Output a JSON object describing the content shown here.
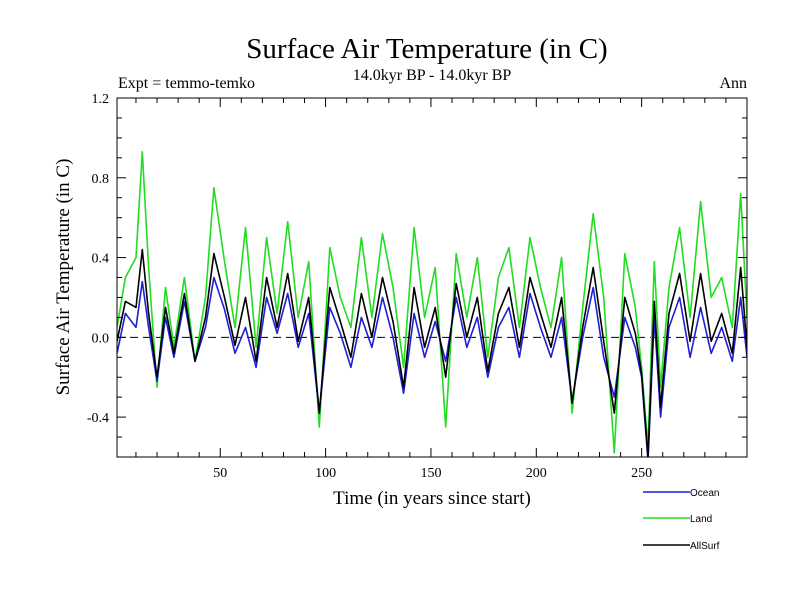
{
  "chart_data": {
    "type": "line",
    "title": "Surface Air Temperature (in C)",
    "subtitle": "14.0kyr BP - 14.0kyr BP",
    "left_label": "Expt = temmo-temko",
    "right_label": "Ann",
    "xlabel": "Time (in years since start)",
    "ylabel": "Surface Air Temperature (in C)",
    "xlim": [
      1,
      300
    ],
    "ylim": [
      -0.6,
      1.2
    ],
    "xticks": [
      50,
      100,
      150,
      200,
      250
    ],
    "yticks": [
      -0.4,
      0.0,
      0.4,
      0.8,
      1.2
    ],
    "ytick_labels": [
      "-0.4",
      "0.0",
      "0.4",
      "0.8",
      "1.2"
    ],
    "zero_line": "dashed",
    "series": [
      {
        "name": "Ocean",
        "color": "#1f1fd6",
        "x": [
          1,
          5,
          10,
          13,
          16,
          20,
          24,
          28,
          33,
          38,
          43,
          47,
          52,
          57,
          62,
          67,
          72,
          77,
          82,
          87,
          92,
          97,
          102,
          107,
          112,
          117,
          122,
          127,
          132,
          137,
          142,
          147,
          152,
          157,
          162,
          167,
          172,
          177,
          182,
          187,
          192,
          197,
          202,
          207,
          212,
          217,
          222,
          227,
          232,
          237,
          242,
          247,
          250,
          253,
          256,
          259,
          263,
          268,
          273,
          278,
          283,
          288,
          293,
          297,
          300
        ],
        "y": [
          -0.08,
          0.12,
          0.05,
          0.28,
          0.05,
          -0.22,
          0.1,
          -0.1,
          0.18,
          -0.12,
          0.05,
          0.3,
          0.14,
          -0.08,
          0.05,
          -0.15,
          0.2,
          0.02,
          0.22,
          -0.05,
          0.12,
          -0.38,
          0.15,
          0.02,
          -0.15,
          0.1,
          -0.05,
          0.2,
          0.0,
          -0.28,
          0.12,
          -0.1,
          0.08,
          -0.12,
          0.2,
          -0.05,
          0.1,
          -0.2,
          0.05,
          0.15,
          -0.1,
          0.22,
          0.05,
          -0.1,
          0.1,
          -0.32,
          0.0,
          0.25,
          -0.1,
          -0.3,
          0.1,
          -0.05,
          -0.2,
          -0.62,
          0.1,
          -0.4,
          0.05,
          0.2,
          -0.1,
          0.15,
          -0.08,
          0.05,
          -0.12,
          0.2,
          -0.1
        ]
      },
      {
        "name": "Land",
        "color": "#22dd22",
        "x": [
          1,
          5,
          10,
          13,
          16,
          20,
          24,
          28,
          33,
          38,
          43,
          47,
          52,
          57,
          62,
          67,
          72,
          77,
          82,
          87,
          92,
          97,
          102,
          107,
          112,
          117,
          122,
          127,
          132,
          137,
          142,
          147,
          152,
          157,
          162,
          167,
          172,
          177,
          182,
          187,
          192,
          197,
          202,
          207,
          212,
          217,
          222,
          227,
          232,
          237,
          242,
          247,
          250,
          253,
          256,
          259,
          263,
          268,
          273,
          278,
          283,
          288,
          293,
          297,
          300
        ],
        "y": [
          0.05,
          0.3,
          0.4,
          0.93,
          0.35,
          -0.25,
          0.25,
          -0.05,
          0.3,
          -0.12,
          0.2,
          0.75,
          0.38,
          0.05,
          0.55,
          -0.05,
          0.5,
          0.12,
          0.58,
          0.1,
          0.38,
          -0.45,
          0.45,
          0.2,
          0.05,
          0.5,
          0.1,
          0.52,
          0.25,
          -0.15,
          0.55,
          0.1,
          0.35,
          -0.45,
          0.42,
          0.1,
          0.4,
          -0.1,
          0.3,
          0.45,
          0.05,
          0.5,
          0.25,
          0.05,
          0.4,
          -0.38,
          0.15,
          0.62,
          0.2,
          -0.58,
          0.42,
          0.15,
          -0.15,
          -0.55,
          0.38,
          -0.25,
          0.25,
          0.55,
          0.1,
          0.68,
          0.2,
          0.3,
          0.05,
          0.72,
          0.1
        ]
      },
      {
        "name": "AllSurf",
        "color": "#000000",
        "x": [
          1,
          5,
          10,
          13,
          16,
          20,
          24,
          28,
          33,
          38,
          43,
          47,
          52,
          57,
          62,
          67,
          72,
          77,
          82,
          87,
          92,
          97,
          102,
          107,
          112,
          117,
          122,
          127,
          132,
          137,
          142,
          147,
          152,
          157,
          162,
          167,
          172,
          177,
          182,
          187,
          192,
          197,
          202,
          207,
          212,
          217,
          222,
          227,
          232,
          237,
          242,
          247,
          250,
          253,
          256,
          259,
          263,
          268,
          273,
          278,
          283,
          288,
          293,
          297,
          300
        ],
        "y": [
          -0.02,
          0.18,
          0.15,
          0.44,
          0.12,
          -0.2,
          0.15,
          -0.08,
          0.22,
          -0.12,
          0.1,
          0.42,
          0.2,
          -0.04,
          0.2,
          -0.12,
          0.3,
          0.05,
          0.32,
          -0.02,
          0.2,
          -0.38,
          0.25,
          0.08,
          -0.1,
          0.22,
          0.0,
          0.3,
          0.08,
          -0.25,
          0.25,
          -0.05,
          0.15,
          -0.2,
          0.27,
          0.0,
          0.2,
          -0.17,
          0.12,
          0.25,
          -0.05,
          0.3,
          0.12,
          -0.05,
          0.2,
          -0.33,
          0.05,
          0.35,
          -0.02,
          -0.38,
          0.2,
          0.02,
          -0.18,
          -0.6,
          0.18,
          -0.35,
          0.12,
          0.32,
          -0.02,
          0.32,
          -0.02,
          0.12,
          -0.08,
          0.35,
          -0.05
        ]
      }
    ],
    "legend_position": "bottom-right"
  }
}
